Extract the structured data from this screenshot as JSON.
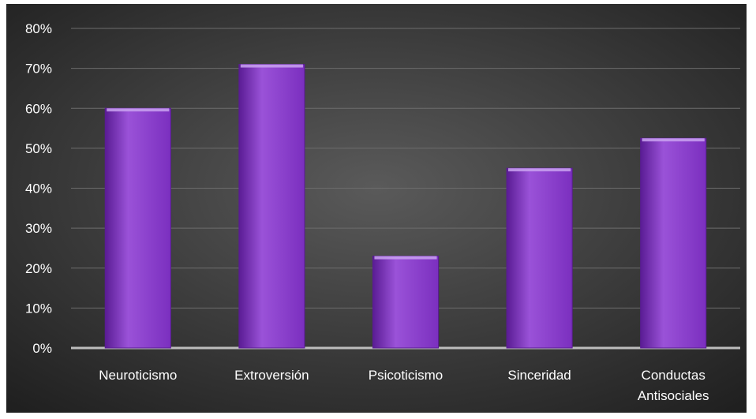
{
  "chart_data": {
    "type": "bar",
    "title": "",
    "xlabel": "",
    "ylabel": "",
    "categories": [
      "Neuroticismo",
      "Extroversión",
      "Psicoticismo",
      "Sinceridad",
      "Conductas Antisociales"
    ],
    "category_lines": [
      [
        "Neuroticismo"
      ],
      [
        "Extroversión"
      ],
      [
        "Psicoticismo"
      ],
      [
        "Sinceridad"
      ],
      [
        "Conductas",
        "Antisociales"
      ]
    ],
    "values": [
      0.6,
      0.71,
      0.23,
      0.45,
      0.525
    ],
    "ylim": [
      0,
      0.8
    ],
    "yticks": [
      0,
      0.1,
      0.2,
      0.3,
      0.4,
      0.5,
      0.6,
      0.7,
      0.8
    ],
    "ytick_labels": [
      "0%",
      "10%",
      "20%",
      "30%",
      "40%",
      "50%",
      "60%",
      "70%",
      "80%"
    ],
    "grid": true,
    "legend": "none",
    "colors": {
      "bar": "#7b2fbf",
      "bar_light": "#9a52d8",
      "bar_dark": "#5a1c94",
      "bar_top": "#c9a2f0",
      "background_center": "#5a5a5a",
      "background_edge": "#1e1e1e",
      "gridline": "#6c6c6c",
      "baseline": "#bdbdbd",
      "text": "#ffffff"
    }
  }
}
